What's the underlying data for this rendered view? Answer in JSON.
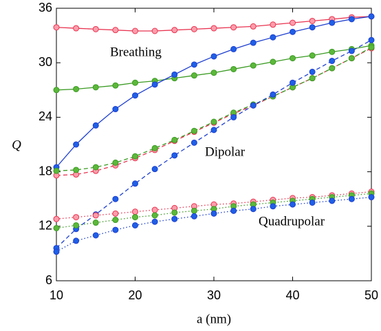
{
  "chart_data": {
    "type": "line",
    "x_label": "a (nm)",
    "y_label": "Q",
    "annotations": [
      "Breathing",
      "Dipolar",
      "Quadrupolar"
    ],
    "x": [
      10,
      12.5,
      15,
      17.5,
      20,
      22.5,
      25,
      27.5,
      30,
      32.5,
      35,
      37.5,
      40,
      42.5,
      45,
      47.5,
      50
    ],
    "xlim": [
      10,
      50
    ],
    "xticks": [
      10,
      20,
      30,
      40,
      50
    ],
    "ylim": [
      6,
      36
    ],
    "yticks": [
      6,
      12,
      18,
      24,
      30,
      36
    ],
    "series": [
      {
        "color": "#e8334f",
        "marker_fill": "#ff9cab",
        "line_style": "solid",
        "values": [
          33.9,
          33.8,
          33.7,
          33.6,
          33.5,
          33.5,
          33.6,
          33.7,
          33.8,
          33.9,
          34.0,
          34.2,
          34.4,
          34.6,
          34.8,
          35.0,
          35.1
        ]
      },
      {
        "color": "#3a9a22",
        "marker_fill": "#5cb83a",
        "line_style": "solid",
        "values": [
          27.0,
          27.1,
          27.3,
          27.5,
          27.8,
          28.0,
          28.3,
          28.6,
          28.9,
          29.3,
          29.7,
          30.1,
          30.5,
          30.8,
          31.2,
          31.5,
          31.9
        ]
      },
      {
        "color": "#1e3fd0",
        "marker_fill": "#1f5fe6",
        "line_style": "solid",
        "values": [
          18.5,
          21.0,
          23.1,
          24.9,
          26.4,
          27.6,
          28.7,
          29.8,
          30.7,
          31.5,
          32.2,
          32.8,
          33.4,
          33.9,
          34.4,
          34.8,
          35.1
        ]
      },
      {
        "color": "#e8334f",
        "marker_fill": "#ff9cab",
        "line_style": "dashed",
        "values": [
          17.6,
          17.7,
          18.1,
          18.7,
          19.5,
          20.4,
          21.4,
          22.4,
          23.4,
          24.4,
          25.3,
          26.3,
          27.3,
          28.3,
          29.4,
          30.5,
          31.6
        ]
      },
      {
        "color": "#3a9a22",
        "marker_fill": "#5cb83a",
        "line_style": "dashed",
        "values": [
          18.1,
          18.2,
          18.5,
          19.0,
          19.7,
          20.6,
          21.5,
          22.5,
          23.5,
          24.5,
          25.4,
          26.3,
          27.3,
          28.3,
          29.4,
          30.5,
          31.7
        ]
      },
      {
        "color": "#1e3fd0",
        "marker_fill": "#1f5fe6",
        "line_style": "dashed",
        "values": [
          9.6,
          11.7,
          13.3,
          15.0,
          16.7,
          18.3,
          19.8,
          21.2,
          22.6,
          24.0,
          25.3,
          26.5,
          27.8,
          29.0,
          30.2,
          31.3,
          32.5
        ]
      },
      {
        "color": "#e8334f",
        "marker_fill": "#ff9cab",
        "line_style": "dotted",
        "values": [
          12.8,
          13.0,
          13.2,
          13.4,
          13.6,
          13.8,
          14.0,
          14.2,
          14.4,
          14.5,
          14.7,
          14.9,
          15.1,
          15.2,
          15.4,
          15.6,
          15.8
        ]
      },
      {
        "color": "#3a9a22",
        "marker_fill": "#5cb83a",
        "line_style": "dotted",
        "values": [
          11.8,
          12.1,
          12.4,
          12.7,
          13.0,
          13.2,
          13.5,
          13.7,
          13.9,
          14.2,
          14.4,
          14.6,
          14.8,
          15.0,
          15.2,
          15.4,
          15.6
        ]
      },
      {
        "color": "#1e3fd0",
        "marker_fill": "#1f5fe6",
        "line_style": "dotted",
        "values": [
          9.2,
          10.4,
          11.0,
          11.6,
          12.1,
          12.5,
          12.8,
          13.1,
          13.4,
          13.7,
          13.9,
          14.2,
          14.4,
          14.6,
          14.8,
          15.0,
          15.2
        ]
      }
    ]
  }
}
